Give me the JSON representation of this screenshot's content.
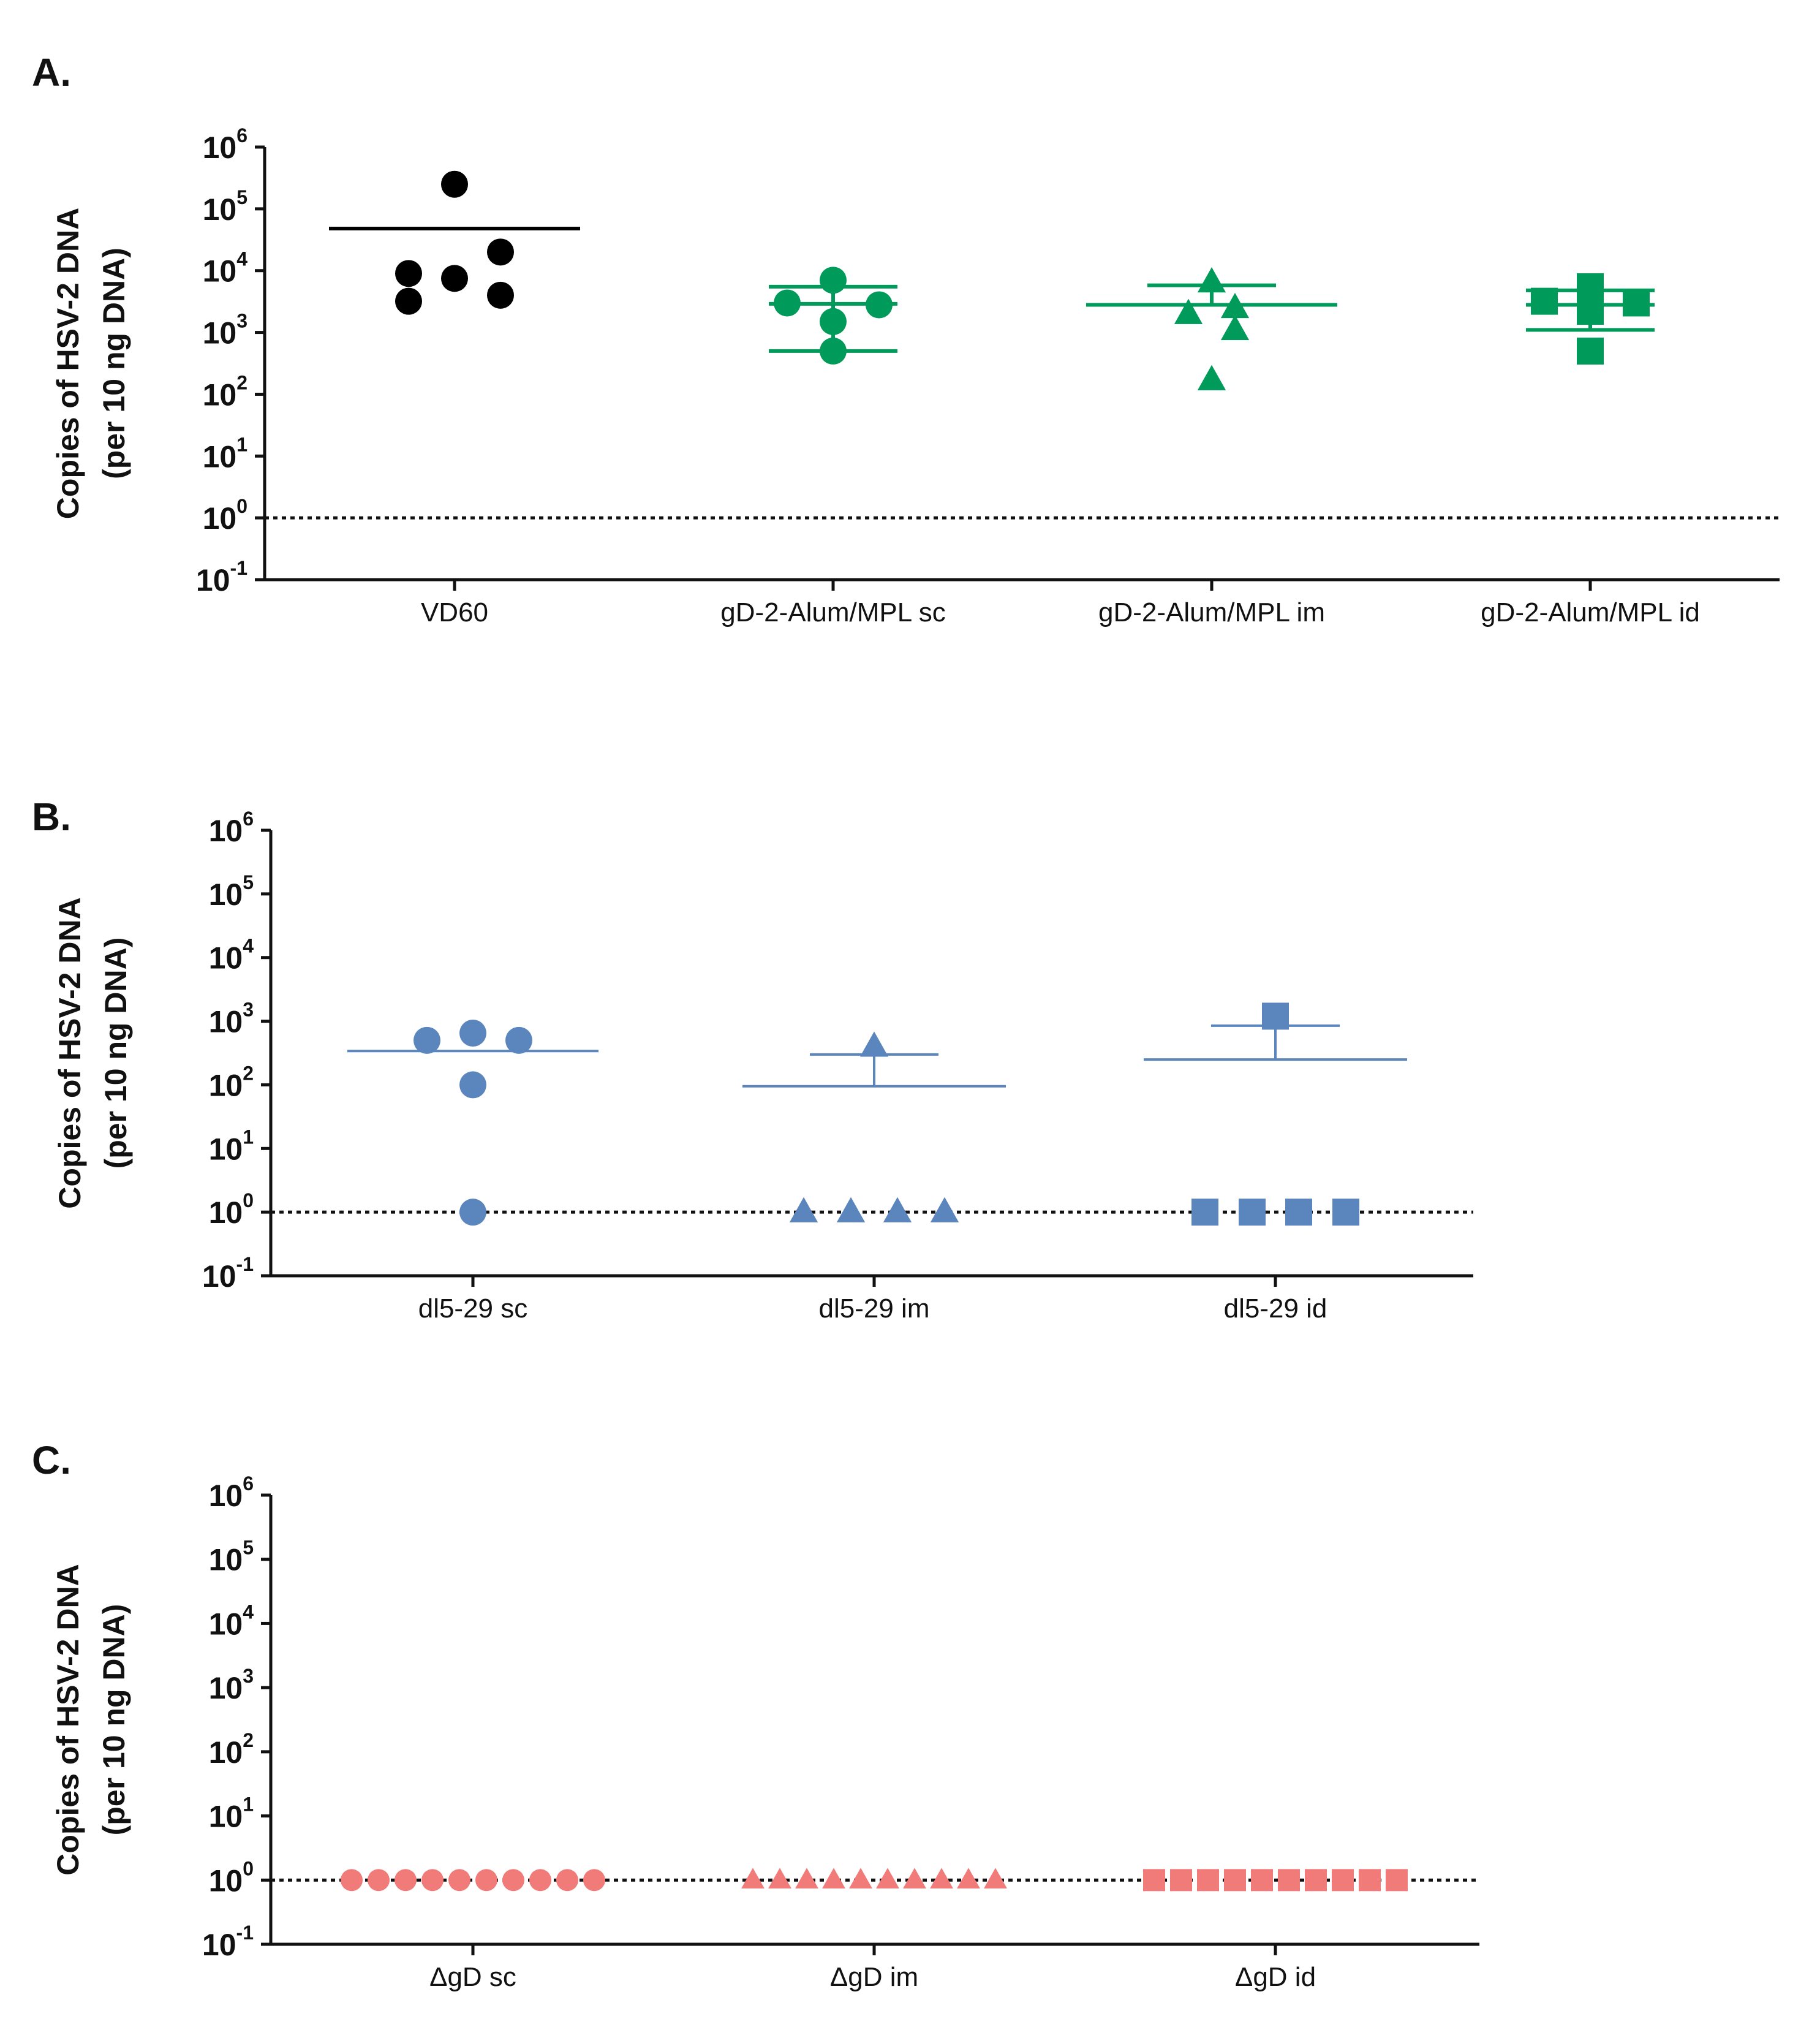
{
  "chart_data": [
    {
      "panel": "A.",
      "type": "scatter",
      "ylabel": [
        "Copies of HSV-2 DNA",
        "(per 10 ng DNA)"
      ],
      "yscale": "log10",
      "ylim": [
        0.1,
        1000000
      ],
      "ytick_labels": [
        {
          "base": "10",
          "exp": "6"
        },
        {
          "base": "10",
          "exp": "5"
        },
        {
          "base": "10",
          "exp": "4"
        },
        {
          "base": "10",
          "exp": "3"
        },
        {
          "base": "10",
          "exp": "2"
        },
        {
          "base": "10",
          "exp": "1"
        },
        {
          "base": "10",
          "exp": "0"
        },
        {
          "base": "10",
          "exp": "-1"
        }
      ],
      "detection_limit": 1,
      "grid": false,
      "groups": [
        {
          "label": "VD60",
          "color": "#000000",
          "marker": "circle",
          "points": [
            250000,
            9000,
            7500,
            20000,
            3200,
            4000
          ],
          "mean": 48000
        },
        {
          "label": "gD-2-Alum/MPL sc",
          "color": "#009a5a",
          "marker": "circle",
          "points": [
            3000,
            7000,
            1500,
            2800,
            500
          ],
          "mean": 2900,
          "sd_upper": 5500,
          "sd_lower": 500
        },
        {
          "label": "gD-2-Alum/MPL im",
          "color": "#009a5a",
          "marker": "triangle",
          "points": [
            2000,
            6500,
            2500,
            1100,
            170
          ],
          "mean": 2800,
          "sd_upper": 5800
        },
        {
          "label": "gD-2-Alum/MPL id",
          "color": "#009a5a",
          "marker": "square",
          "points": [
            3200,
            5500,
            2200,
            3000,
            500
          ],
          "mean": 2800,
          "sd_upper": 4800,
          "sd_lower": 1100
        }
      ]
    },
    {
      "panel": "B.",
      "type": "scatter",
      "ylabel": [
        "Copies of HSV-2 DNA",
        "(per 10 ng DNA)"
      ],
      "yscale": "log10",
      "ylim": [
        0.1,
        1000000
      ],
      "ytick_labels": [
        {
          "base": "10",
          "exp": "6"
        },
        {
          "base": "10",
          "exp": "5"
        },
        {
          "base": "10",
          "exp": "4"
        },
        {
          "base": "10",
          "exp": "3"
        },
        {
          "base": "10",
          "exp": "2"
        },
        {
          "base": "10",
          "exp": "1"
        },
        {
          "base": "10",
          "exp": "0"
        },
        {
          "base": "10",
          "exp": "-1"
        }
      ],
      "detection_limit": 1,
      "grid": false,
      "groups": [
        {
          "label": "dl5-29 sc",
          "color": "#5b85bd",
          "marker": "circle",
          "points": [
            500,
            650,
            500,
            100,
            1
          ],
          "mean": 340
        },
        {
          "label": "dl5-29 im",
          "color": "#5b85bd",
          "marker": "triangle",
          "points": [
            400,
            1,
            1,
            1,
            1
          ],
          "mean": 95,
          "sd_upper": 300
        },
        {
          "label": "dl5-29 id",
          "color": "#5b85bd",
          "marker": "square",
          "points": [
            1200,
            1,
            1,
            1,
            1
          ],
          "mean": 250,
          "sd_upper": 850
        }
      ]
    },
    {
      "panel": "C.",
      "type": "scatter",
      "ylabel": [
        "Copies of HSV-2 DNA",
        "(per 10 ng DNA)"
      ],
      "yscale": "log10",
      "ylim": [
        0.1,
        1000000
      ],
      "ytick_labels": [
        {
          "base": "10",
          "exp": "6"
        },
        {
          "base": "10",
          "exp": "5"
        },
        {
          "base": "10",
          "exp": "4"
        },
        {
          "base": "10",
          "exp": "3"
        },
        {
          "base": "10",
          "exp": "2"
        },
        {
          "base": "10",
          "exp": "1"
        },
        {
          "base": "10",
          "exp": "0"
        },
        {
          "base": "10",
          "exp": "-1"
        }
      ],
      "detection_limit": 1,
      "grid": false,
      "groups": [
        {
          "label": "ΔgD sc",
          "color": "#f17b78",
          "marker": "circle",
          "points": [
            1,
            1,
            1,
            1,
            1,
            1,
            1,
            1,
            1,
            1
          ]
        },
        {
          "label": "ΔgD im",
          "color": "#f17b78",
          "marker": "triangle",
          "points": [
            1,
            1,
            1,
            1,
            1,
            1,
            1,
            1,
            1,
            1
          ]
        },
        {
          "label": "ΔgD id",
          "color": "#f17b78",
          "marker": "square",
          "points": [
            1,
            1,
            1,
            1,
            1,
            1,
            1,
            1,
            1,
            1
          ]
        }
      ]
    }
  ]
}
